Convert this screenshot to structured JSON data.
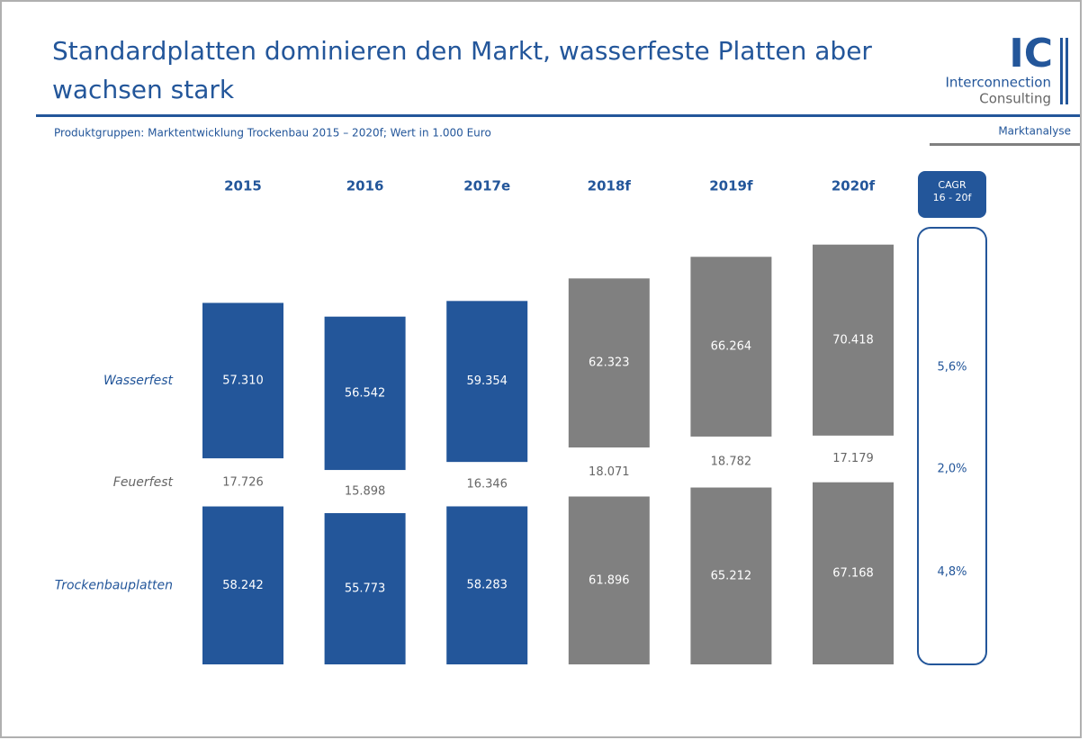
{
  "header": {
    "title": [
      "Standardplatten dominieren den Markt, wasserfeste Platten aber",
      "wachsen stark"
    ],
    "logo": {
      "mark": "IC",
      "line1": "Interconnection",
      "line2": "Consulting"
    },
    "subtitle": "Produktgruppen: Marktentwicklung Trockenbau 2015 – 2020f; Wert in 1.000 Euro",
    "section": "Marktanalyse"
  },
  "chart_data": {
    "type": "stacked_bar",
    "categories": [
      "2015",
      "2016",
      "2017e",
      "2018f",
      "2019f",
      "2020f"
    ],
    "ylim": [
      0,
      155000
    ],
    "series": [
      {
        "name": "Trockenbauplatten",
        "color": [
          "#23569a",
          "#23569a",
          "#23569a",
          "#808080",
          "#808080",
          "#808080"
        ],
        "label_color": "#ffffff",
        "values": [
          58242,
          55773,
          58283,
          61896,
          65212,
          67168
        ],
        "value_labels": [
          "58.242",
          "55.773",
          "58.283",
          "61.896",
          "65.212",
          "67.168"
        ]
      },
      {
        "name": "Feuerfest",
        "color": "#ffffff",
        "label_color": "#666666",
        "values": [
          17726,
          15898,
          16346,
          18071,
          18782,
          17179
        ],
        "value_labels": [
          "17.726",
          "15.898",
          "16.346",
          "18.071",
          "18.782",
          "17.179"
        ]
      },
      {
        "name": "Wasserfest",
        "color": [
          "#23569a",
          "#23569a",
          "#23569a",
          "#808080",
          "#808080",
          "#808080"
        ],
        "label_color": "#ffffff",
        "values": [
          57310,
          56542,
          59354,
          62323,
          66264,
          70418
        ],
        "value_labels": [
          "57.310",
          "56.542",
          "59.354",
          "62.323",
          "66.264",
          "70.418"
        ]
      }
    ],
    "cagr": {
      "title": [
        "CAGR",
        "16 - 20f"
      ],
      "values": [
        4.8,
        2.0,
        5.6
      ],
      "value_labels": [
        "4,8%",
        "2,0%",
        "5,6%"
      ]
    }
  }
}
